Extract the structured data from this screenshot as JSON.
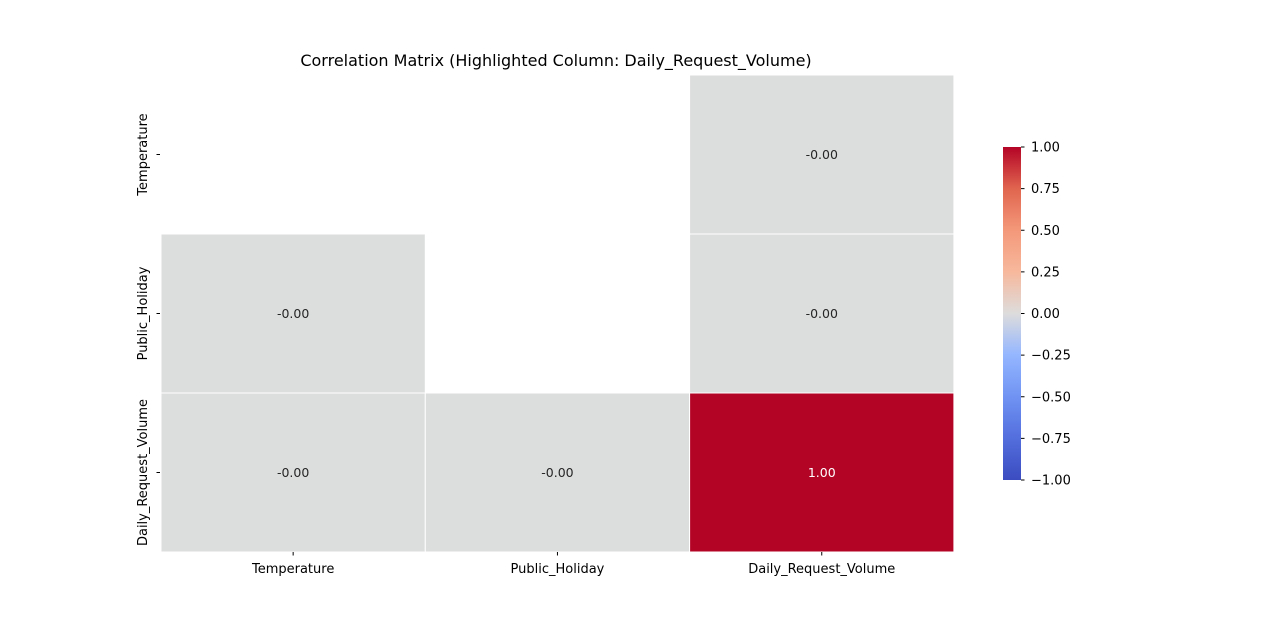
{
  "chart_data": {
    "type": "heatmap",
    "title": "Correlation Matrix (Highlighted Column: Daily_Request_Volume)",
    "xlabel": "",
    "ylabel": "",
    "x_labels": [
      "Temperature",
      "Public_Holiday",
      "Daily_Request_Volume"
    ],
    "y_labels": [
      "Temperature",
      "Public_Holiday",
      "Daily_Request_Volume"
    ],
    "cells": [
      {
        "row": 0,
        "col": 2,
        "value": -0.0,
        "label": "-0.00"
      },
      {
        "row": 1,
        "col": 0,
        "value": -0.0,
        "label": "-0.00"
      },
      {
        "row": 1,
        "col": 2,
        "value": -0.0,
        "label": "-0.00"
      },
      {
        "row": 2,
        "col": 0,
        "value": -0.0,
        "label": "-0.00"
      },
      {
        "row": 2,
        "col": 1,
        "value": -0.0,
        "label": "-0.00"
      },
      {
        "row": 2,
        "col": 2,
        "value": 1.0,
        "label": "1.00"
      }
    ],
    "colormap": "coolwarm",
    "vmin": -1.0,
    "vmax": 1.0,
    "colorbar_ticks": [
      "1.00",
      "0.75",
      "0.50",
      "0.25",
      "0.00",
      "−0.25",
      "−0.50",
      "−0.75",
      "−1.00"
    ],
    "colors": {
      "neutral": "#dcdddd",
      "high": "#b40426",
      "low": "#3b4cc0"
    }
  }
}
